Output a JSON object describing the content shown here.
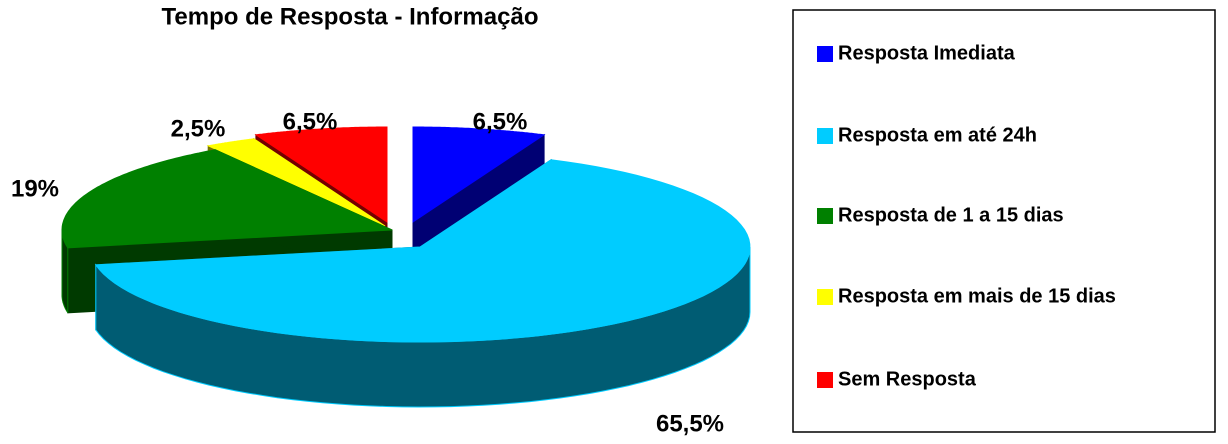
{
  "chart_data": {
    "type": "pie",
    "title": "Tempo de Resposta - Informação",
    "categories": [
      "Resposta Imediata",
      "Resposta em até 24h",
      "Resposta de 1 a 15 dias",
      "Resposta em mais de 15 dias",
      "Sem Resposta"
    ],
    "values": [
      6.5,
      65.5,
      19,
      2.5,
      6.5
    ],
    "value_labels": [
      "6,5%",
      "65,5%",
      "19%",
      "2,5%",
      "6,5%"
    ],
    "colors": [
      "#0000ff",
      "#00ccff",
      "#008000",
      "#ffff00",
      "#ff0000"
    ],
    "legend": "right"
  }
}
